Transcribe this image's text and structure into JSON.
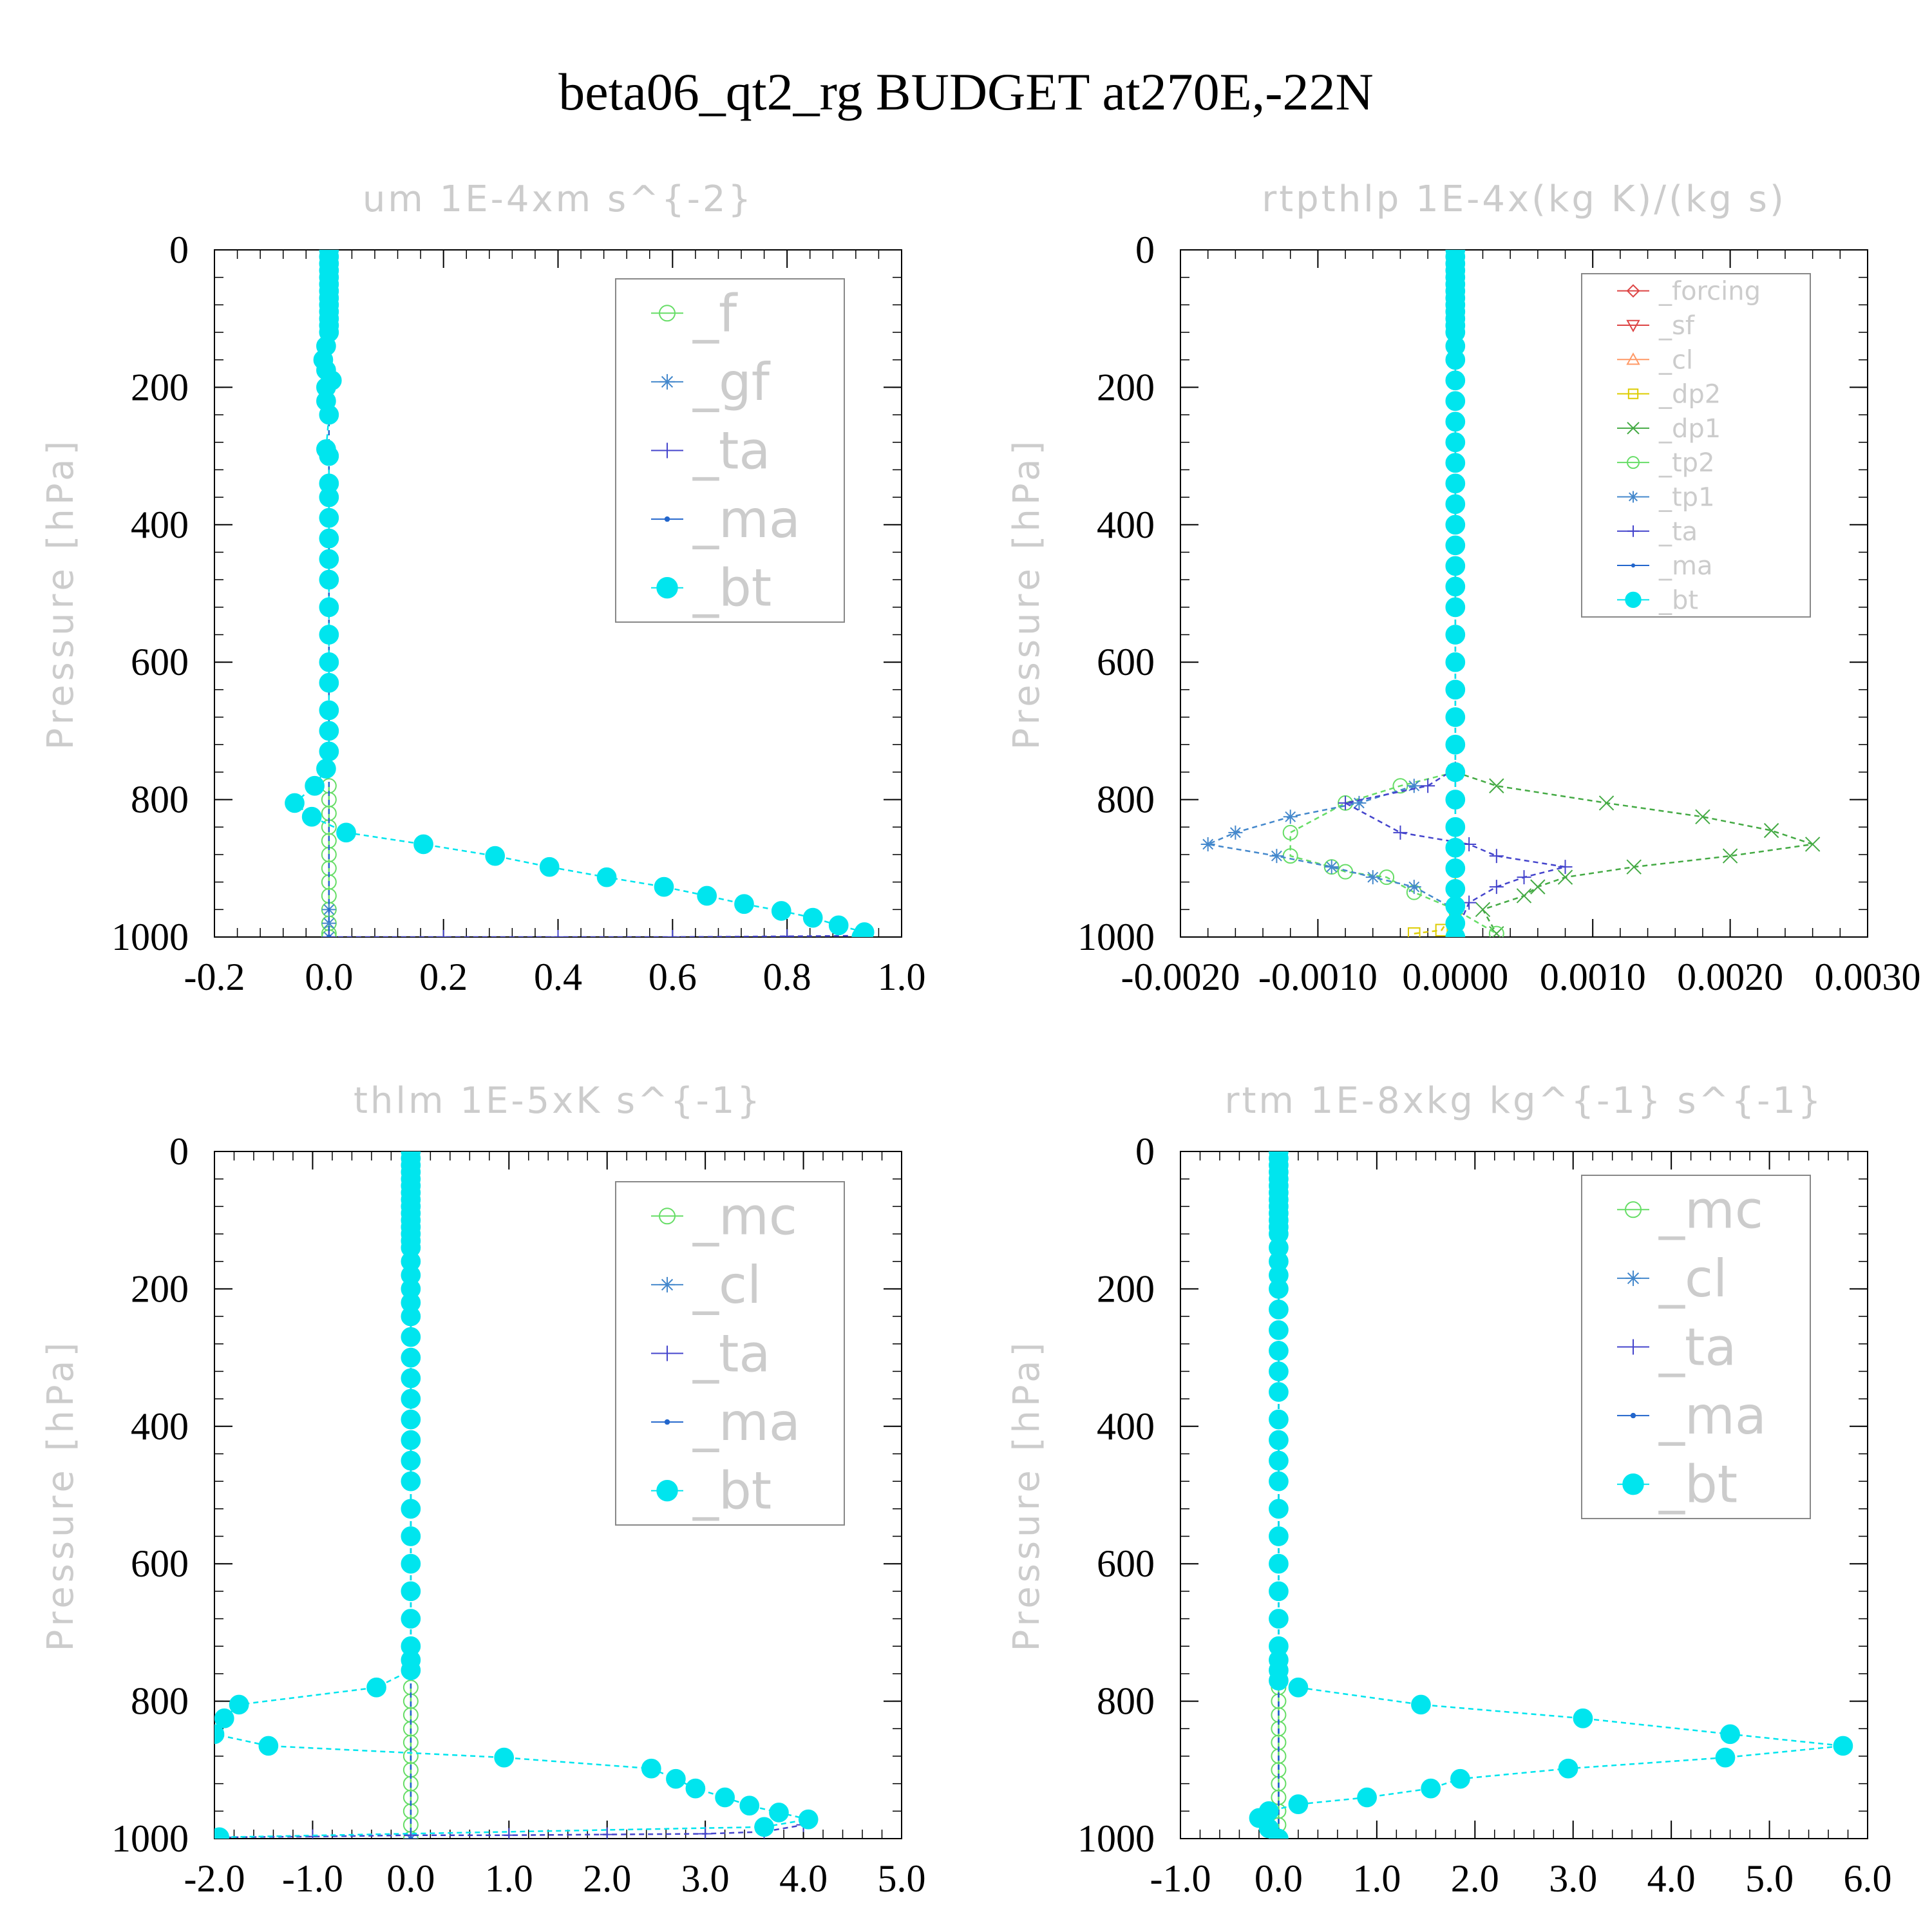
{
  "title": "beta06_qt2_rg  BUDGET at270E,-22N",
  "chart_data": [
    {
      "type": "line",
      "title": "um  1E-4xm s^{-2}",
      "ylabel": "Pressure [hPa]",
      "xlim": [
        -0.2,
        1.0
      ],
      "ylim": [
        1000,
        0
      ],
      "xticks": [
        "-0.2",
        "0.0",
        "0.2",
        "0.4",
        "0.6",
        "0.8",
        "1.0"
      ],
      "xtick_values": [
        -0.2,
        0.0,
        0.2,
        0.4,
        0.6,
        0.8,
        1.0
      ],
      "yticks": [
        "0",
        "200",
        "400",
        "600",
        "800",
        "1000"
      ],
      "ytick_values": [
        0,
        200,
        400,
        600,
        800,
        1000
      ],
      "legend_placement": "top-right",
      "legend_font": 80,
      "series": [
        {
          "name": "_f",
          "color": "#66dd66",
          "marker": "circle",
          "x": [
            0,
            0,
            0,
            0,
            0,
            0,
            0,
            0,
            0,
            0,
            0,
            0,
            0
          ],
          "y": [
            780,
            800,
            820,
            840,
            860,
            880,
            900,
            920,
            940,
            960,
            980,
            995,
            1000
          ]
        },
        {
          "name": "_gf",
          "color": "#4488cc",
          "marker": "star",
          "x": [
            0,
            0,
            0
          ],
          "y": [
            960,
            980,
            1000
          ]
        },
        {
          "name": "_ta",
          "color": "#4444cc",
          "marker": "plus",
          "x": [
            0.0,
            0.2,
            0.4,
            0.6,
            0.8,
            0.93
          ],
          "y": [
            1000,
            1000,
            1000,
            1000,
            999,
            998
          ]
        },
        {
          "name": "_ma",
          "color": "#2266cc",
          "marker": "dot",
          "x": [
            0,
            0
          ],
          "y": [
            0,
            1000
          ]
        },
        {
          "name": "_bt",
          "color": "#00e5ee",
          "marker": "filled",
          "x": [
            0,
            0,
            0,
            0,
            0,
            0,
            0,
            0,
            0,
            0,
            0,
            0,
            0,
            -0.005,
            -0.01,
            -0.005,
            0.005,
            -0.005,
            -0.005,
            0,
            -0.005,
            0,
            0,
            0,
            0,
            0,
            0,
            0,
            0,
            0,
            0,
            0,
            0,
            0,
            0,
            -0.005,
            -0.025,
            -0.06,
            -0.03,
            0.03,
            0.165,
            0.29,
            0.385,
            0.485,
            0.585,
            0.66,
            0.725,
            0.79,
            0.845,
            0.89,
            0.935,
            0.93
          ],
          "y": [
            0,
            10,
            20,
            30,
            40,
            50,
            60,
            70,
            80,
            90,
            100,
            110,
            120,
            140,
            160,
            175,
            190,
            200,
            220,
            240,
            290,
            300,
            340,
            360,
            390,
            420,
            450,
            480,
            520,
            560,
            600,
            630,
            670,
            700,
            730,
            755,
            780,
            805,
            825,
            848,
            865,
            882,
            898,
            913,
            927,
            940,
            952,
            962,
            972,
            983,
            993,
            1000
          ]
        }
      ]
    },
    {
      "type": "line",
      "title": "rtpthlp  1E-4x(kg K)/(kg s)",
      "ylabel": "Pressure [hPa]",
      "xlim": [
        -0.002,
        0.003
      ],
      "ylim": [
        1000,
        0
      ],
      "xticks": [
        "-0.0020",
        "-0.0010",
        "0.0000",
        "0.0010",
        "0.0020",
        "0.0030"
      ],
      "xtick_values": [
        -0.002,
        -0.001,
        0.0,
        0.001,
        0.002,
        0.003
      ],
      "yticks": [
        "0",
        "200",
        "400",
        "600",
        "800",
        "1000"
      ],
      "ytick_values": [
        0,
        200,
        400,
        600,
        800,
        1000
      ],
      "legend_placement": "top-right",
      "legend_font": 40,
      "series": [
        {
          "name": "_forcing",
          "color": "#dd4444",
          "marker": "diamond",
          "x": [
            0,
            0
          ],
          "y": [
            0,
            1000
          ]
        },
        {
          "name": "_sf",
          "color": "#dd4444",
          "marker": "tri-down",
          "x": [
            0,
            0
          ],
          "y": [
            0,
            1000
          ]
        },
        {
          "name": "_cl",
          "color": "#ff9966",
          "marker": "tri-up",
          "x": [
            0,
            0
          ],
          "y": [
            0,
            1000
          ]
        },
        {
          "name": "_dp2",
          "color": "#ddcc00",
          "marker": "square",
          "x": [
            -0.0003,
            -0.0001,
            0,
            0,
            0
          ],
          "y": [
            995,
            990,
            960,
            930,
            900
          ]
        },
        {
          "name": "_dp1",
          "color": "#44aa44",
          "marker": "x",
          "x": [
            0,
            0.0003,
            0.0011,
            0.0018,
            0.0023,
            0.0026,
            0.002,
            0.0013,
            0.0008,
            0.0006,
            0.0005,
            0.0002,
            0.0003
          ],
          "y": [
            760,
            780,
            805,
            825,
            845,
            865,
            882,
            898,
            913,
            927,
            940,
            960,
            995
          ]
        },
        {
          "name": "_tp2",
          "color": "#66dd66",
          "marker": "circle",
          "x": [
            0,
            -0.0004,
            -0.0008,
            -0.0012,
            -0.0012,
            -0.0009,
            -0.0008,
            -0.0005,
            -0.0003,
            0,
            0.0003
          ],
          "y": [
            760,
            780,
            805,
            848,
            882,
            898,
            905,
            913,
            935,
            960,
            995
          ]
        },
        {
          "name": "_tp1",
          "color": "#4488cc",
          "marker": "star",
          "x": [
            -0.0003,
            -0.0007,
            -0.0012,
            -0.0016,
            -0.0018,
            -0.0013,
            -0.0009,
            -0.0006,
            -0.0003,
            0,
            0
          ],
          "y": [
            780,
            805,
            825,
            848,
            865,
            882,
            898,
            913,
            927,
            960,
            995
          ]
        },
        {
          "name": "_ta",
          "color": "#4444cc",
          "marker": "plus",
          "x": [
            0,
            -0.0002,
            -0.0008,
            -0.0004,
            0.0001,
            0.0003,
            0.0008,
            0.0005,
            0.0003,
            0.0001,
            0
          ],
          "y": [
            755,
            780,
            805,
            848,
            865,
            882,
            898,
            913,
            927,
            950,
            995
          ]
        },
        {
          "name": "_ma",
          "color": "#2266cc",
          "marker": "dot",
          "x": [
            0,
            0
          ],
          "y": [
            0,
            1000
          ]
        },
        {
          "name": "_bt",
          "color": "#00e5ee",
          "marker": "filled",
          "x": [
            0,
            0,
            0,
            0,
            0,
            0,
            0,
            0,
            0,
            0,
            0,
            0,
            0,
            0,
            0,
            0,
            0,
            0,
            0,
            0,
            0,
            0,
            0,
            0,
            0,
            0,
            0,
            0,
            0,
            0,
            0,
            0,
            0,
            0,
            0,
            0,
            0,
            0,
            0,
            0,
            0
          ],
          "y": [
            0,
            10,
            20,
            30,
            40,
            50,
            60,
            70,
            80,
            90,
            100,
            110,
            120,
            140,
            160,
            190,
            220,
            250,
            280,
            310,
            340,
            370,
            400,
            430,
            460,
            490,
            520,
            560,
            600,
            640,
            680,
            720,
            760,
            800,
            840,
            870,
            900,
            930,
            955,
            980,
            1000
          ]
        }
      ]
    },
    {
      "type": "line",
      "title": "thlm  1E-5xK s^{-1}",
      "ylabel": "Pressure [hPa]",
      "xlim": [
        -2.0,
        5.0
      ],
      "ylim": [
        1000,
        0
      ],
      "xticks": [
        "-2.0",
        "-1.0",
        "0.0",
        "1.0",
        "2.0",
        "3.0",
        "4.0",
        "5.0"
      ],
      "xtick_values": [
        -2.0,
        -1.0,
        0.0,
        1.0,
        2.0,
        3.0,
        4.0,
        5.0
      ],
      "yticks": [
        "0",
        "200",
        "400",
        "600",
        "800",
        "1000"
      ],
      "ytick_values": [
        0,
        200,
        400,
        600,
        800,
        1000
      ],
      "legend_placement": "top-right",
      "legend_font": 80,
      "series": [
        {
          "name": "_mc",
          "color": "#66dd66",
          "marker": "circle",
          "x": [
            0,
            0,
            0,
            0,
            0,
            0,
            0,
            0,
            0,
            0,
            0,
            0
          ],
          "y": [
            780,
            800,
            820,
            840,
            860,
            880,
            900,
            920,
            940,
            960,
            980,
            1000
          ]
        },
        {
          "name": "_cl",
          "color": "#4488cc",
          "marker": "star",
          "x": [
            0,
            0
          ],
          "y": [
            0,
            1000
          ]
        },
        {
          "name": "_ta",
          "color": "#4444cc",
          "marker": "plus",
          "x": [
            -1.9,
            -1.0,
            0.0,
            1.0,
            2.0,
            3.0,
            3.6,
            4.0
          ],
          "y": [
            998,
            997,
            995,
            995,
            994,
            993,
            990,
            980
          ]
        },
        {
          "name": "_ma",
          "color": "#2266cc",
          "marker": "dot",
          "x": [
            0,
            0
          ],
          "y": [
            0,
            1000
          ]
        },
        {
          "name": "_bt",
          "color": "#00e5ee",
          "marker": "filled",
          "x": [
            0,
            0,
            0,
            0,
            0,
            0,
            0,
            0,
            0,
            0,
            0,
            0,
            0,
            0,
            0,
            0,
            0,
            0,
            0,
            0,
            0,
            0,
            0,
            0,
            0,
            0,
            0,
            0,
            0,
            0,
            0,
            0,
            0,
            0,
            0,
            0,
            -0.35,
            -1.75,
            -1.9,
            -2.0,
            -1.45,
            0.95,
            2.45,
            2.7,
            2.9,
            3.2,
            3.45,
            3.75,
            4.05,
            3.6,
            -1.95
          ],
          "y": [
            0,
            10,
            20,
            30,
            40,
            50,
            60,
            70,
            80,
            90,
            100,
            110,
            120,
            130,
            140,
            160,
            180,
            200,
            220,
            240,
            270,
            300,
            330,
            360,
            390,
            420,
            450,
            480,
            520,
            560,
            600,
            640,
            680,
            720,
            740,
            755,
            780,
            805,
            825,
            848,
            865,
            882,
            898,
            913,
            927,
            940,
            952,
            962,
            972,
            983,
            998
          ]
        }
      ]
    },
    {
      "type": "line",
      "title": "rtm  1E-8xkg kg^{-1} s^{-1}",
      "ylabel": "Pressure [hPa]",
      "xlim": [
        -1.0,
        6.0
      ],
      "ylim": [
        1000,
        0
      ],
      "xticks": [
        "-1.0",
        "0.0",
        "1.0",
        "2.0",
        "3.0",
        "4.0",
        "5.0",
        "6.0"
      ],
      "xtick_values": [
        -1.0,
        0.0,
        1.0,
        2.0,
        3.0,
        4.0,
        5.0,
        6.0
      ],
      "yticks": [
        "0",
        "200",
        "400",
        "600",
        "800",
        "1000"
      ],
      "ytick_values": [
        0,
        200,
        400,
        600,
        800,
        1000
      ],
      "legend_placement": "top-right",
      "legend_font": 80,
      "series": [
        {
          "name": "_mc",
          "color": "#66dd66",
          "marker": "circle",
          "x": [
            0,
            0,
            0,
            0,
            0,
            0,
            0,
            0,
            0,
            0,
            0,
            0
          ],
          "y": [
            780,
            800,
            820,
            840,
            860,
            880,
            900,
            920,
            940,
            960,
            980,
            1000
          ]
        },
        {
          "name": "_cl",
          "color": "#4488cc",
          "marker": "star",
          "x": [
            0,
            0
          ],
          "y": [
            0,
            1000
          ]
        },
        {
          "name": "_ta",
          "color": "#4444cc",
          "marker": "plus",
          "x": [
            0,
            0
          ],
          "y": [
            0,
            1000
          ]
        },
        {
          "name": "_ma",
          "color": "#2266cc",
          "marker": "dot",
          "x": [
            0,
            0
          ],
          "y": [
            0,
            1000
          ]
        },
        {
          "name": "_bt",
          "color": "#00e5ee",
          "marker": "filled",
          "x": [
            0,
            0,
            0,
            0,
            0,
            0,
            0,
            0,
            0,
            0,
            0,
            0,
            0,
            0,
            0,
            0,
            0,
            0,
            0,
            0,
            0,
            0,
            0,
            0,
            0,
            0,
            0,
            0,
            0,
            0,
            0,
            0,
            0,
            0,
            0,
            0.2,
            1.45,
            3.1,
            4.6,
            5.75,
            4.55,
            2.95,
            1.85,
            1.55,
            0.9,
            0.2,
            -0.1,
            -0.2,
            -0.1,
            0
          ],
          "y": [
            0,
            10,
            20,
            30,
            40,
            50,
            60,
            70,
            80,
            90,
            100,
            110,
            120,
            140,
            160,
            180,
            200,
            230,
            260,
            290,
            320,
            350,
            390,
            420,
            450,
            480,
            520,
            560,
            600,
            640,
            680,
            720,
            740,
            755,
            770,
            780,
            805,
            825,
            848,
            865,
            882,
            898,
            913,
            927,
            940,
            950,
            960,
            970,
            985,
            1000
          ]
        }
      ]
    }
  ]
}
